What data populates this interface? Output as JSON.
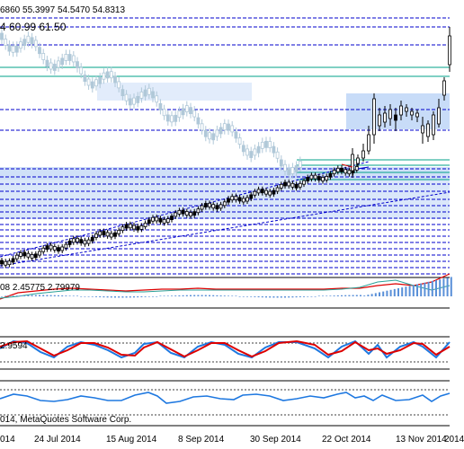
{
  "main_panel": {
    "ohlc_text": "6860 55.3997 54.5470 54.8313",
    "indicator_text": "4 60.99 61.50"
  },
  "macd_panel": {
    "label": "08 2.45775 2.79979"
  },
  "stoch_panel": {
    "label": "2.9594"
  },
  "footer": {
    "copyright": "014, MetaQuotes Software Corp."
  },
  "x_axis": {
    "labels": [
      "014",
      "24 Jul 2014",
      "15 Aug 2014",
      "8 Sep 2014",
      "30 Sep 2014",
      "22 Oct 2014",
      "13 Nov 2014"
    ],
    "trailing_label": "2014"
  },
  "colors": {
    "candle": "#000000",
    "light_candle": "#b0c8d8",
    "blue_level": "#0000cc",
    "green_level": "#00a08a",
    "zone_fill": "#c8dcf8",
    "red_line": "#dd0000",
    "blue_line": "#1e78e0",
    "grid_line": "#000000"
  }
}
